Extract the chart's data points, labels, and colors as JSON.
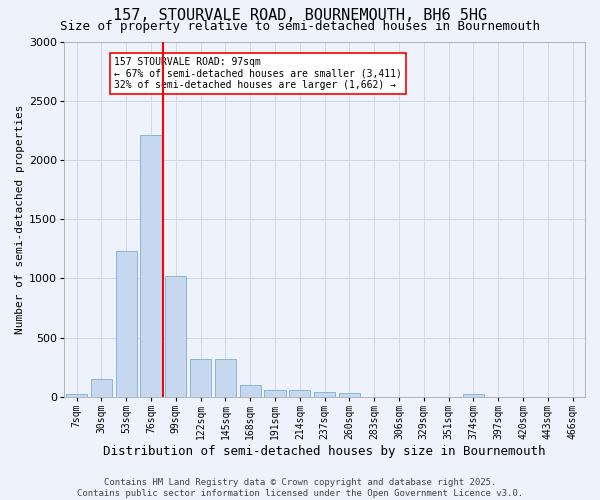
{
  "title": "157, STOURVALE ROAD, BOURNEMOUTH, BH6 5HG",
  "subtitle": "Size of property relative to semi-detached houses in Bournemouth",
  "xlabel": "Distribution of semi-detached houses by size in Bournemouth",
  "ylabel": "Number of semi-detached properties",
  "bar_labels": [
    "7sqm",
    "30sqm",
    "53sqm",
    "76sqm",
    "99sqm",
    "122sqm",
    "145sqm",
    "168sqm",
    "191sqm",
    "214sqm",
    "237sqm",
    "260sqm",
    "283sqm",
    "306sqm",
    "329sqm",
    "351sqm",
    "374sqm",
    "397sqm",
    "420sqm",
    "443sqm",
    "466sqm"
  ],
  "bar_values": [
    20,
    150,
    1230,
    2210,
    1020,
    320,
    320,
    100,
    60,
    60,
    40,
    30,
    0,
    0,
    0,
    0,
    25,
    0,
    0,
    0,
    0
  ],
  "bar_color": "#C5D8F0",
  "bar_edge_color": "#7BAFD4",
  "grid_color": "#D0D8E8",
  "background_color": "#EEF3FB",
  "vline_x_index": 3,
  "vline_color": "red",
  "annotation_text": "157 STOURVALE ROAD: 97sqm\n← 67% of semi-detached houses are smaller (3,411)\n32% of semi-detached houses are larger (1,662) →",
  "annotation_box_color": "white",
  "annotation_box_edge": "red",
  "ylim": [
    0,
    3000
  ],
  "yticks": [
    0,
    500,
    1000,
    1500,
    2000,
    2500,
    3000
  ],
  "footer_line1": "Contains HM Land Registry data © Crown copyright and database right 2025.",
  "footer_line2": "Contains public sector information licensed under the Open Government Licence v3.0.",
  "title_fontsize": 11,
  "subtitle_fontsize": 9,
  "ylabel_fontsize": 8,
  "xlabel_fontsize": 9,
  "tick_fontsize": 7,
  "annotation_fontsize": 7,
  "footer_fontsize": 6.5
}
